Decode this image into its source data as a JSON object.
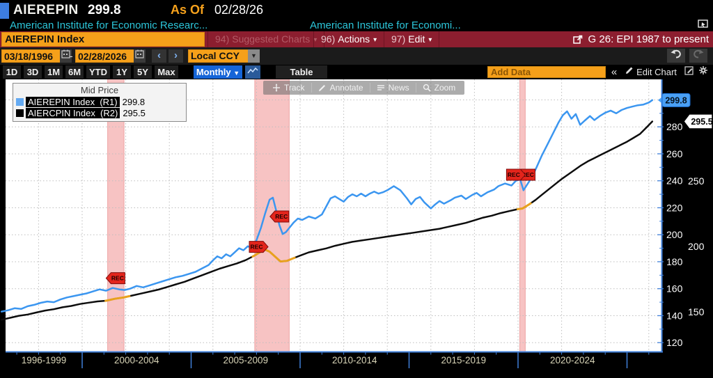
{
  "header": {
    "ticker": "AIEREPIN",
    "price": "299.8",
    "as_of_label": "As Of",
    "as_of_date": "02/28/26",
    "security1": "American Institute for Economic Researc...",
    "security2": "American Institute for Economi..."
  },
  "command_bar": {
    "ticker_input": "AIEREPIN Index",
    "menus": [
      {
        "key": "94)",
        "label": "Suggested Charts"
      },
      {
        "key": "96)",
        "label": "Actions"
      },
      {
        "key": "97)",
        "label": "Edit"
      }
    ],
    "chart_title": "G 26: EPI 1987 to present"
  },
  "date_bar": {
    "start_date": "03/18/1996",
    "separator": "-",
    "end_date": "02/28/2026",
    "prev": "‹",
    "next": "›",
    "currency": "Local CCY"
  },
  "period_bar": {
    "periods": [
      "1D",
      "3D",
      "1M",
      "6M",
      "YTD",
      "1Y",
      "5Y",
      "Max"
    ],
    "frequency": "Monthly",
    "table_label": "Table",
    "add_data_placeholder": "Add Data",
    "collapse_label": "«",
    "edit_chart_label": "Edit Chart"
  },
  "chart_toolbar": {
    "items": [
      "Track",
      "Annotate",
      "News",
      "Zoom"
    ]
  },
  "legend": {
    "title": "Mid Price",
    "items": [
      {
        "swatch": "#64aaf2",
        "label": "AIEREPIN Index  (R1)",
        "value": "299.8"
      },
      {
        "swatch": "#000000",
        "label": "AIERCPIN Index  (R2)",
        "value": "295.5"
      }
    ]
  },
  "chart_data": {
    "type": "line",
    "title": "G 26: EPI 1987 to present",
    "observed_range": {
      "start": "03/18/1996",
      "end": "02/28/2026"
    },
    "x_sections": [
      "1996-1999",
      "2000-2004",
      "2005-2009",
      "2010-2014",
      "2015-2019",
      "2020-2024"
    ],
    "section_divider_years": [
      2000,
      2005,
      2010,
      2015,
      2020,
      2025
    ],
    "axes": {
      "r1": {
        "name": "AIEREPIN Index (R1)",
        "ticks": [
          120,
          140,
          160,
          180,
          200,
          220,
          240,
          260,
          280
        ],
        "badge": "299.8",
        "badge_color": "#4aa0f5"
      },
      "r2": {
        "name": "AIERCPIN Index (R2)",
        "ticks": [
          150,
          200,
          250
        ],
        "badge": "295.5",
        "badge_color": "#ffffff"
      }
    },
    "recession_bands": [
      {
        "start": 2001.17,
        "end": 2001.92
      },
      {
        "start": 2007.92,
        "end": 2009.5
      },
      {
        "start": 2020.08,
        "end": 2020.33
      }
    ],
    "rec_markers": [
      {
        "label": "REC",
        "year": 2001.53,
        "value": 167.8,
        "axis": "r1",
        "dir": "left"
      },
      {
        "label": "REC",
        "year": 2008.1,
        "value": 199.7,
        "axis": "r2",
        "dir": "right"
      },
      {
        "label": "REC",
        "year": 2009.05,
        "value": 213.5,
        "axis": "r1",
        "dir": "left"
      },
      {
        "label": "REC",
        "year": 2020.35,
        "value": 244.5,
        "axis": "r1",
        "dir": "left"
      },
      {
        "label": "REC",
        "year": 2019.9,
        "value": 244.5,
        "axis": "r1",
        "dir": "right"
      }
    ],
    "series": [
      {
        "name": "AIERCPIN Index",
        "axis": "r2",
        "color": "#0d0d0d",
        "band_highlight": "#e8a11d",
        "points": [
          [
            1996.3,
            144
          ],
          [
            1996.7,
            145.5
          ],
          [
            1997.1,
            147
          ],
          [
            1997.5,
            148
          ],
          [
            1997.9,
            149.5
          ],
          [
            1998.3,
            151
          ],
          [
            1998.7,
            152
          ],
          [
            1999.1,
            153.5
          ],
          [
            1999.5,
            154.5
          ],
          [
            1999.9,
            156
          ],
          [
            2000.3,
            157
          ],
          [
            2000.7,
            158
          ],
          [
            2001.1,
            158.5
          ],
          [
            2001.5,
            160
          ],
          [
            2001.9,
            161
          ],
          [
            2002.3,
            162.5
          ],
          [
            2002.7,
            164
          ],
          [
            2003.1,
            165.5
          ],
          [
            2003.5,
            167
          ],
          [
            2003.9,
            169
          ],
          [
            2004.3,
            171
          ],
          [
            2004.7,
            173
          ],
          [
            2005.1,
            175.5
          ],
          [
            2005.5,
            178
          ],
          [
            2005.9,
            180.5
          ],
          [
            2006.3,
            183
          ],
          [
            2006.7,
            185
          ],
          [
            2007.1,
            187
          ],
          [
            2007.5,
            189.5
          ],
          [
            2007.9,
            193
          ],
          [
            2008.2,
            196
          ],
          [
            2008.4,
            197.5
          ],
          [
            2008.6,
            196
          ],
          [
            2008.9,
            191.5
          ],
          [
            2009.1,
            188.5
          ],
          [
            2009.4,
            189
          ],
          [
            2009.7,
            191
          ],
          [
            2010,
            193
          ],
          [
            2010.4,
            195.5
          ],
          [
            2010.8,
            197
          ],
          [
            2011.2,
            198.5
          ],
          [
            2011.6,
            200.5
          ],
          [
            2012,
            202
          ],
          [
            2012.4,
            203.5
          ],
          [
            2012.8,
            204.5
          ],
          [
            2013.2,
            205.5
          ],
          [
            2013.6,
            206.5
          ],
          [
            2014,
            207.5
          ],
          [
            2014.4,
            208.5
          ],
          [
            2014.8,
            209.5
          ],
          [
            2015.2,
            210.5
          ],
          [
            2015.6,
            211.5
          ],
          [
            2016,
            212.5
          ],
          [
            2016.4,
            213.5
          ],
          [
            2016.8,
            215
          ],
          [
            2017.2,
            216.5
          ],
          [
            2017.6,
            218
          ],
          [
            2018,
            220
          ],
          [
            2018.4,
            222
          ],
          [
            2018.8,
            223.5
          ],
          [
            2019.2,
            225.5
          ],
          [
            2019.6,
            227
          ],
          [
            2020,
            228.5
          ],
          [
            2020.2,
            229
          ],
          [
            2020.5,
            232
          ],
          [
            2020.8,
            235.5
          ],
          [
            2021.1,
            239.5
          ],
          [
            2021.4,
            243.5
          ],
          [
            2021.7,
            247.5
          ],
          [
            2022,
            251.5
          ],
          [
            2022.3,
            255
          ],
          [
            2022.6,
            258.5
          ],
          [
            2022.9,
            262
          ],
          [
            2023.2,
            265
          ],
          [
            2023.5,
            267.5
          ],
          [
            2023.8,
            270
          ],
          [
            2024.1,
            272.5
          ],
          [
            2024.4,
            275
          ],
          [
            2024.7,
            277.5
          ],
          [
            2025,
            280
          ],
          [
            2025.3,
            283
          ],
          [
            2025.6,
            286
          ],
          [
            2025.9,
            291
          ],
          [
            2026.16,
            295.5
          ]
        ]
      },
      {
        "name": "AIEREPIN Index",
        "axis": "r1",
        "color": "#3b96f0",
        "points": [
          [
            1996.3,
            143
          ],
          [
            1996.6,
            144
          ],
          [
            1996.9,
            145.5
          ],
          [
            1997.2,
            145
          ],
          [
            1997.5,
            147
          ],
          [
            1997.8,
            148
          ],
          [
            1998.1,
            149.5
          ],
          [
            1998.4,
            150.5
          ],
          [
            1998.7,
            150
          ],
          [
            1999,
            152
          ],
          [
            1999.3,
            153.5
          ],
          [
            1999.6,
            154.5
          ],
          [
            1999.9,
            155.5
          ],
          [
            2000.2,
            156.5
          ],
          [
            2000.5,
            158
          ],
          [
            2000.8,
            159.5
          ],
          [
            2001.1,
            158.5
          ],
          [
            2001.4,
            160.5
          ],
          [
            2001.7,
            159.5
          ],
          [
            2001.95,
            159
          ],
          [
            2002.2,
            160
          ],
          [
            2002.5,
            162
          ],
          [
            2002.8,
            161
          ],
          [
            2003.1,
            162.5
          ],
          [
            2003.4,
            164
          ],
          [
            2003.7,
            165.5
          ],
          [
            2004,
            167
          ],
          [
            2004.3,
            168.5
          ],
          [
            2004.6,
            169.5
          ],
          [
            2004.9,
            171
          ],
          [
            2005.2,
            172.5
          ],
          [
            2005.5,
            175
          ],
          [
            2005.8,
            177.5
          ],
          [
            2006,
            181
          ],
          [
            2006.2,
            184
          ],
          [
            2006.4,
            182.5
          ],
          [
            2006.6,
            185.5
          ],
          [
            2006.8,
            184
          ],
          [
            2007,
            187
          ],
          [
            2007.2,
            190
          ],
          [
            2007.4,
            188.5
          ],
          [
            2007.6,
            191.5
          ],
          [
            2007.8,
            190
          ],
          [
            2008,
            196
          ],
          [
            2008.2,
            205
          ],
          [
            2008.4,
            216
          ],
          [
            2008.6,
            226
          ],
          [
            2008.75,
            227.5
          ],
          [
            2008.9,
            218
          ],
          [
            2009.05,
            207
          ],
          [
            2009.2,
            200.5
          ],
          [
            2009.35,
            202
          ],
          [
            2009.5,
            205
          ],
          [
            2009.7,
            209
          ],
          [
            2009.9,
            212
          ],
          [
            2010.1,
            211
          ],
          [
            2010.4,
            213.5
          ],
          [
            2010.7,
            212
          ],
          [
            2011,
            215
          ],
          [
            2011.2,
            221
          ],
          [
            2011.4,
            227
          ],
          [
            2011.6,
            228.5
          ],
          [
            2011.8,
            226.5
          ],
          [
            2012,
            224.5
          ],
          [
            2012.2,
            228
          ],
          [
            2012.4,
            230
          ],
          [
            2012.6,
            228.5
          ],
          [
            2012.8,
            230.5
          ],
          [
            2013,
            228.5
          ],
          [
            2013.2,
            230.5
          ],
          [
            2013.4,
            232
          ],
          [
            2013.6,
            230.5
          ],
          [
            2013.8,
            231.5
          ],
          [
            2014,
            233
          ],
          [
            2014.3,
            236
          ],
          [
            2014.6,
            233
          ],
          [
            2014.9,
            227
          ],
          [
            2015.1,
            222.5
          ],
          [
            2015.3,
            226.5
          ],
          [
            2015.5,
            228
          ],
          [
            2015.7,
            224
          ],
          [
            2016,
            219.5
          ],
          [
            2016.2,
            222.5
          ],
          [
            2016.4,
            225
          ],
          [
            2016.6,
            223
          ],
          [
            2016.9,
            225.5
          ],
          [
            2017.1,
            227.5
          ],
          [
            2017.4,
            229
          ],
          [
            2017.6,
            226.5
          ],
          [
            2017.9,
            229.5
          ],
          [
            2018.1,
            231
          ],
          [
            2018.3,
            228.5
          ],
          [
            2018.6,
            231.5
          ],
          [
            2018.9,
            233.5
          ],
          [
            2019.1,
            236
          ],
          [
            2019.4,
            238
          ],
          [
            2019.7,
            236.5
          ],
          [
            2019.9,
            240
          ],
          [
            2020.1,
            241
          ],
          [
            2020.25,
            233
          ],
          [
            2020.45,
            238
          ],
          [
            2020.65,
            243
          ],
          [
            2020.85,
            250
          ],
          [
            2021.1,
            259
          ],
          [
            2021.35,
            267
          ],
          [
            2021.6,
            275
          ],
          [
            2021.85,
            283
          ],
          [
            2022.05,
            288.5
          ],
          [
            2022.25,
            291.5
          ],
          [
            2022.45,
            286
          ],
          [
            2022.65,
            289.5
          ],
          [
            2022.85,
            281.5
          ],
          [
            2023.05,
            284.5
          ],
          [
            2023.3,
            288
          ],
          [
            2023.5,
            285
          ],
          [
            2023.75,
            288
          ],
          [
            2024,
            290.5
          ],
          [
            2024.25,
            292
          ],
          [
            2024.5,
            290
          ],
          [
            2024.75,
            292.5
          ],
          [
            2025,
            294
          ],
          [
            2025.25,
            295
          ],
          [
            2025.5,
            296
          ],
          [
            2025.75,
            296.5
          ],
          [
            2026,
            298
          ],
          [
            2026.16,
            299.8
          ]
        ]
      }
    ]
  }
}
